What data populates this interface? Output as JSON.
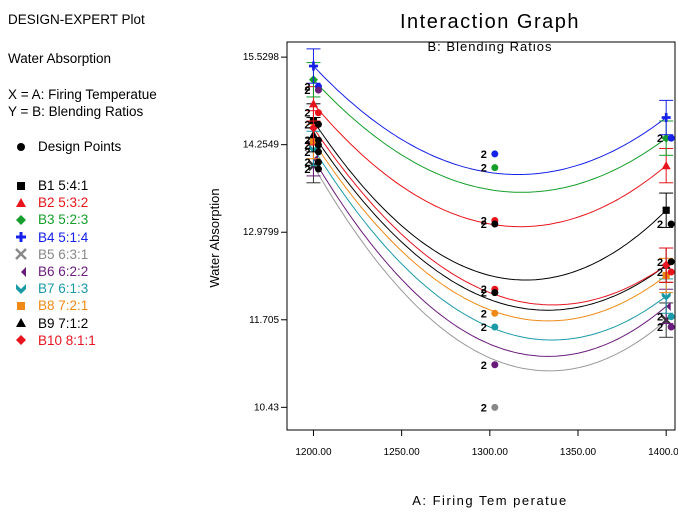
{
  "header": {
    "plot_kind": "DESIGN-EXPERT Plot",
    "response": "Water Absorption",
    "x_def": "X = A: Firing Temperatue",
    "y_def": "Y = B: Blending Ratios",
    "design_points": "Design Points"
  },
  "colors": {
    "B1": "#000000",
    "B2": "#e8141b",
    "B3": "#159e2b",
    "B4": "#1520e8",
    "B5": "#333333",
    "B6": "#6a1b7c",
    "B7": "#1a9aa6",
    "B8": "#ef8a17",
    "B9": "#000000",
    "B10": "#e81420"
  },
  "chart_data": {
    "type": "line",
    "title": "Interaction Graph",
    "subtitle": "B: Blending Ratios",
    "xlabel": "A: Firing Tem peratue",
    "ylabel": "Water Absorption",
    "xlim": [
      1185,
      1405
    ],
    "ylim": [
      10.1,
      15.75
    ],
    "x_ticks": [
      "1200.00",
      "1250.00",
      "1300.00",
      "1350.00",
      "1400.00"
    ],
    "y_ticks": [
      "10.43",
      "11.705",
      "12.9799",
      "14.2549",
      "15.5298"
    ],
    "x_tick_values": [
      1200,
      1250,
      1300,
      1350,
      1400
    ],
    "y_tick_values": [
      10.43,
      11.705,
      12.9799,
      14.2549,
      15.5298
    ],
    "x": [
      1200,
      1300,
      1400
    ],
    "series": [
      {
        "name": "B1 5:4:1",
        "marker": "square",
        "color": "#000000",
        "values": [
          14.6,
          12.35,
          13.3
        ],
        "err": 0.25
      },
      {
        "name": "B2 5:3:2",
        "marker": "triangle",
        "color": "#e8141b",
        "values": [
          14.85,
          13.1,
          13.95
        ],
        "err": 0.25
      },
      {
        "name": "B3 5:2:3",
        "marker": "diamond",
        "color": "#159e2b",
        "values": [
          15.2,
          13.6,
          14.35
        ],
        "err": 0.25
      },
      {
        "name": "B4 5:1:4",
        "marker": "cross",
        "color": "#1520e8",
        "values": [
          15.4,
          13.85,
          14.65
        ],
        "err": 0.25
      },
      {
        "name": "B5 6:3:1",
        "marker": "x",
        "color": "#333333",
        "values": [
          13.95,
          11.15,
          11.7
        ],
        "err": 0.25
      },
      {
        "name": "B6 6:2:2",
        "marker": "bowtie",
        "color": "#6a1b7c",
        "values": [
          14.05,
          11.35,
          11.9
        ],
        "err": 0.25
      },
      {
        "name": "B7 6:1:3",
        "marker": "chevron",
        "color": "#1a9aa6",
        "values": [
          14.2,
          11.6,
          12.05
        ],
        "err": 0.25
      },
      {
        "name": "B8 7:2:1",
        "marker": "square",
        "color": "#ef8a17",
        "values": [
          14.3,
          11.85,
          12.35
        ],
        "err": 0.25
      },
      {
        "name": "B9 7:1:2",
        "marker": "triangle",
        "color": "#000000",
        "values": [
          14.4,
          12.0,
          12.5
        ],
        "err": 0.25
      },
      {
        "name": "B10 8:1:1",
        "marker": "diamond",
        "color": "#e81420",
        "values": [
          14.5,
          12.1,
          12.5
        ],
        "err": 0.25
      }
    ],
    "design_points": [
      {
        "x": 1200,
        "y": 15.1,
        "label": "2",
        "color": "#1520e8"
      },
      {
        "x": 1200,
        "y": 15.05,
        "label": "2",
        "color": "#6a1b7c"
      },
      {
        "x": 1200,
        "y": 14.72,
        "label": "2",
        "color": "#e8141b"
      },
      {
        "x": 1200,
        "y": 14.55,
        "label": "2",
        "color": "#000000"
      },
      {
        "x": 1200,
        "y": 14.32,
        "label": "2",
        "color": "#000000"
      },
      {
        "x": 1200,
        "y": 14.25,
        "label": "2",
        "color": "#000000"
      },
      {
        "x": 1200,
        "y": 14.15,
        "label": "2",
        "color": "#000000"
      },
      {
        "x": 1200,
        "y": 14.0,
        "label": "2",
        "color": "#000000"
      },
      {
        "x": 1200,
        "y": 13.9,
        "label": "2",
        "color": "#000000"
      },
      {
        "x": 1300,
        "y": 14.12,
        "label": "2",
        "color": "#1520e8"
      },
      {
        "x": 1300,
        "y": 13.92,
        "label": "2",
        "color": "#159e2b"
      },
      {
        "x": 1300,
        "y": 13.15,
        "label": "2",
        "color": "#e8141b"
      },
      {
        "x": 1300,
        "y": 13.1,
        "label": "2",
        "color": "#000000"
      },
      {
        "x": 1300,
        "y": 12.15,
        "label": "2",
        "color": "#e8141b"
      },
      {
        "x": 1300,
        "y": 12.1,
        "label": "2",
        "color": "#000000"
      },
      {
        "x": 1300,
        "y": 11.8,
        "label": "2",
        "color": "#ef8a17"
      },
      {
        "x": 1300,
        "y": 11.6,
        "label": "2",
        "color": "#1a9aa6"
      },
      {
        "x": 1300,
        "y": 11.05,
        "label": "2",
        "color": "#6a1b7c"
      },
      {
        "x": 1300,
        "y": 10.43,
        "label": "2",
        "color": "#888888"
      },
      {
        "x": 1400,
        "y": 14.35,
        "label": "2",
        "color": "#1520e8"
      },
      {
        "x": 1400,
        "y": 13.1,
        "label": "2",
        "color": "#000000"
      },
      {
        "x": 1400,
        "y": 12.55,
        "label": "2",
        "color": "#000000"
      },
      {
        "x": 1400,
        "y": 12.4,
        "label": "2",
        "color": "#e8141b"
      },
      {
        "x": 1400,
        "y": 11.75,
        "label": "2",
        "color": "#1a9aa6"
      },
      {
        "x": 1400,
        "y": 11.6,
        "label": "2",
        "color": "#6a1b7c"
      }
    ]
  },
  "legend": [
    {
      "label": "B1 5:4:1",
      "marker": "square",
      "color": "#000000"
    },
    {
      "label": "B2 5:3:2",
      "marker": "triangle",
      "color": "#e8141b"
    },
    {
      "label": "B3 5:2:3",
      "marker": "diamond",
      "color": "#159e2b"
    },
    {
      "label": "B4 5:1:4",
      "marker": "cross",
      "color": "#1520e8"
    },
    {
      "label": "B5 6:3:1",
      "marker": "x",
      "color": "#888888"
    },
    {
      "label": "B6 6:2:2",
      "marker": "bowtie",
      "color": "#6a1b7c"
    },
    {
      "label": "B7 6:1:3",
      "marker": "chevron",
      "color": "#1a9aa6"
    },
    {
      "label": "B8 7:2:1",
      "marker": "square",
      "color": "#ef8a17"
    },
    {
      "label": "B9 7:1:2",
      "marker": "triangle",
      "color": "#000000"
    },
    {
      "label": "B10 8:1:1",
      "marker": "diamond",
      "color": "#e81420"
    }
  ]
}
